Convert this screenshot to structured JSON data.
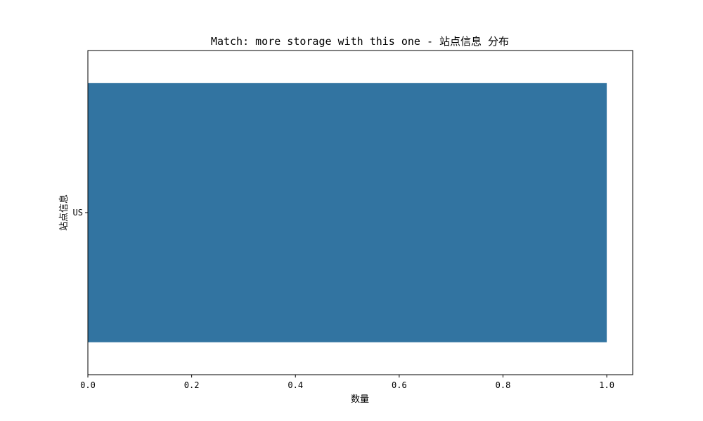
{
  "chart_data": {
    "type": "bar",
    "orientation": "horizontal",
    "title": "Match: more storage with this one - 站点信息 分布",
    "xlabel": "数量",
    "ylabel": "站点信息",
    "categories": [
      "US"
    ],
    "values": [
      1
    ],
    "xlim": [
      0,
      1.05
    ],
    "xticks": [
      "0.0",
      "0.2",
      "0.4",
      "0.6",
      "0.8",
      "1.0"
    ],
    "grid": false,
    "bar_color": "#3274a1"
  }
}
